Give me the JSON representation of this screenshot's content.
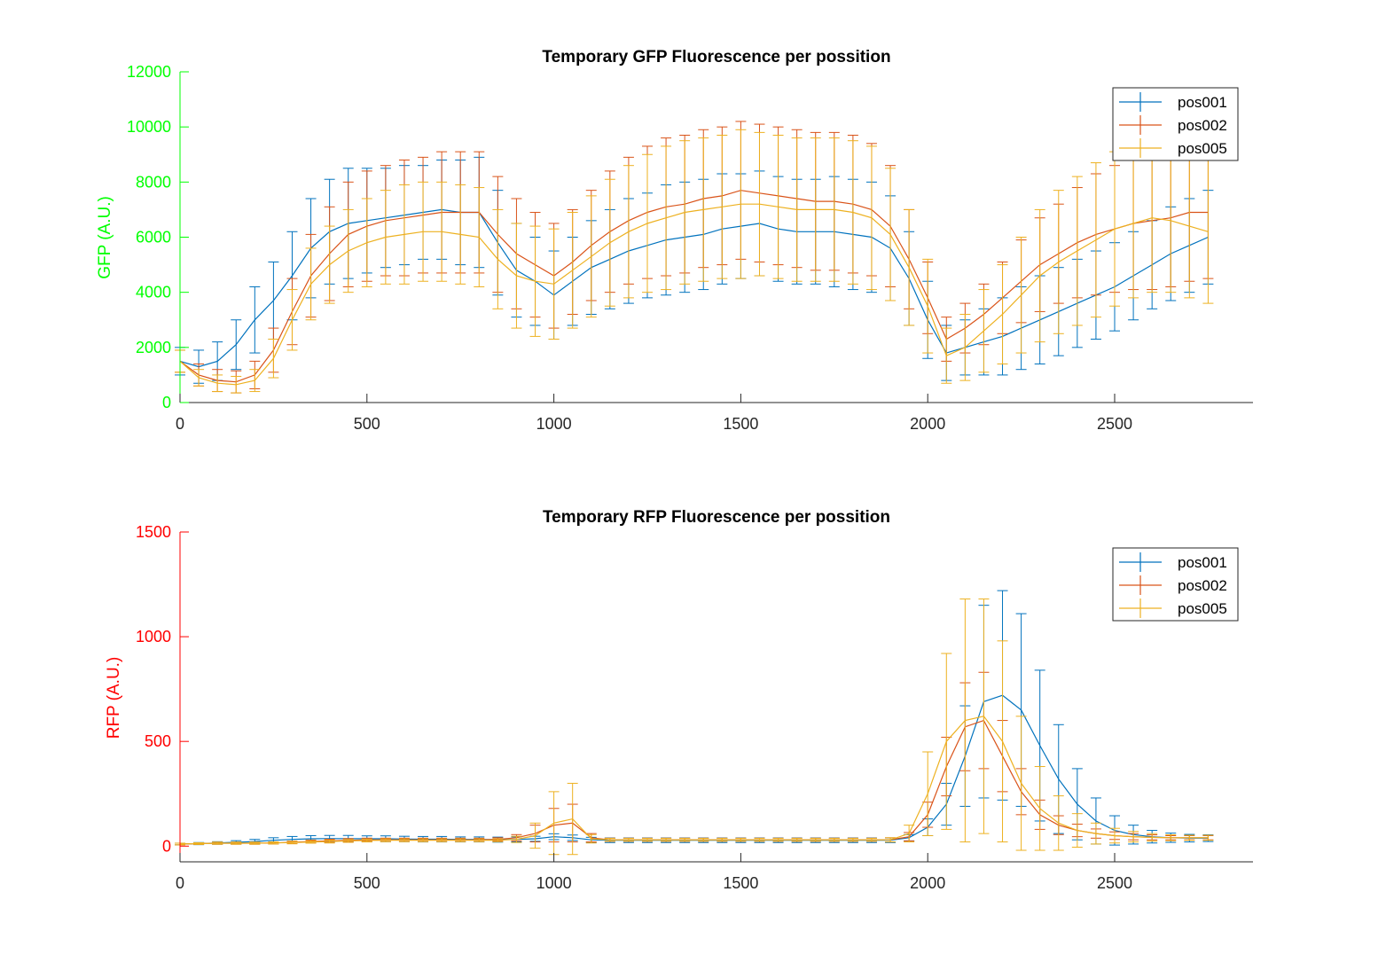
{
  "colors": {
    "pos001": "#0072BD",
    "pos002": "#D95319",
    "pos005": "#EDB120",
    "gfp_axis": "#00FF00",
    "rfp_axis": "#FF0000",
    "axis": "#262626"
  },
  "chart_data": [
    {
      "type": "line",
      "title": "Temporary GFP Fluorescence per possition",
      "xlabel": "",
      "ylabel": "GFP (A.U.)",
      "xlim": [
        0,
        2870
      ],
      "ylim": [
        0,
        12000
      ],
      "xticks": [
        0,
        500,
        1000,
        1500,
        2000,
        2500
      ],
      "yticks": [
        0,
        2000,
        4000,
        6000,
        8000,
        10000,
        12000
      ],
      "error_bars": true,
      "grid": false,
      "legend_position": "top-right",
      "series": [
        {
          "name": "pos001",
          "x": [
            0,
            50,
            100,
            150,
            200,
            250,
            300,
            350,
            400,
            450,
            500,
            550,
            600,
            650,
            700,
            750,
            800,
            850,
            900,
            950,
            1000,
            1050,
            1100,
            1150,
            1200,
            1250,
            1300,
            1350,
            1400,
            1450,
            1500,
            1550,
            1600,
            1650,
            1700,
            1750,
            1800,
            1850,
            1900,
            1950,
            2000,
            2050,
            2100,
            2150,
            2200,
            2250,
            2300,
            2350,
            2400,
            2450,
            2500,
            2550,
            2600,
            2650,
            2700,
            2750
          ],
          "y": [
            1500,
            1300,
            1500,
            2100,
            3000,
            3700,
            4600,
            5600,
            6200,
            6500,
            6600,
            6700,
            6800,
            6900,
            7000,
            6900,
            6900,
            5800,
            4800,
            4400,
            3900,
            4400,
            4900,
            5200,
            5500,
            5700,
            5900,
            6000,
            6100,
            6300,
            6400,
            6500,
            6300,
            6200,
            6200,
            6200,
            6100,
            6000,
            5600,
            4500,
            3000,
            1800,
            2000,
            2200,
            2400,
            2700,
            3000,
            3300,
            3600,
            3900,
            4200,
            4600,
            5000,
            5400,
            5700,
            6000
          ],
          "err": [
            500,
            600,
            700,
            900,
            1200,
            1400,
            1600,
            1800,
            1900,
            2000,
            1900,
            1800,
            1800,
            1700,
            1800,
            1900,
            2000,
            1900,
            1700,
            1600,
            1600,
            1600,
            1700,
            1800,
            1900,
            1900,
            2000,
            2000,
            2000,
            2000,
            1900,
            1900,
            1900,
            1900,
            1900,
            2000,
            2000,
            2000,
            1900,
            1700,
            1400,
            1000,
            1000,
            1200,
            1400,
            1500,
            1600,
            1600,
            1600,
            1600,
            1600,
            1600,
            1600,
            1700,
            1700,
            1700
          ]
        },
        {
          "name": "pos002",
          "x": [
            0,
            50,
            100,
            150,
            200,
            250,
            300,
            350,
            400,
            450,
            500,
            550,
            600,
            650,
            700,
            750,
            800,
            850,
            900,
            950,
            1000,
            1050,
            1100,
            1150,
            1200,
            1250,
            1300,
            1350,
            1400,
            1450,
            1500,
            1550,
            1600,
            1650,
            1700,
            1750,
            1800,
            1850,
            1900,
            1950,
            2000,
            2050,
            2100,
            2150,
            2200,
            2250,
            2300,
            2350,
            2400,
            2450,
            2500,
            2550,
            2600,
            2650,
            2700,
            2750
          ],
          "y": [
            1500,
            1000,
            800,
            750,
            1000,
            1900,
            3300,
            4600,
            5400,
            6100,
            6400,
            6600,
            6700,
            6800,
            6900,
            6900,
            6900,
            6100,
            5400,
            5000,
            4600,
            5100,
            5700,
            6200,
            6600,
            6900,
            7100,
            7200,
            7400,
            7500,
            7700,
            7600,
            7500,
            7400,
            7300,
            7300,
            7200,
            7000,
            6400,
            5200,
            3800,
            2300,
            2700,
            3200,
            3800,
            4400,
            5000,
            5400,
            5800,
            6100,
            6300,
            6500,
            6600,
            6700,
            6900,
            6900
          ],
          "err": [
            400,
            400,
            400,
            400,
            500,
            800,
            1200,
            1500,
            1700,
            1900,
            2000,
            2000,
            2100,
            2100,
            2200,
            2200,
            2200,
            2100,
            2000,
            1900,
            1900,
            1900,
            2000,
            2200,
            2300,
            2400,
            2500,
            2500,
            2500,
            2500,
            2500,
            2500,
            2500,
            2500,
            2500,
            2500,
            2500,
            2400,
            2200,
            1800,
            1300,
            800,
            900,
            1100,
            1300,
            1500,
            1700,
            1800,
            2000,
            2200,
            2300,
            2400,
            2500,
            2500,
            2500,
            2400
          ]
        },
        {
          "name": "pos005",
          "x": [
            0,
            50,
            100,
            150,
            200,
            250,
            300,
            350,
            400,
            450,
            500,
            550,
            600,
            650,
            700,
            750,
            800,
            850,
            900,
            950,
            1000,
            1050,
            1100,
            1150,
            1200,
            1250,
            1300,
            1350,
            1400,
            1450,
            1500,
            1550,
            1600,
            1650,
            1700,
            1750,
            1800,
            1850,
            1900,
            1950,
            2000,
            2050,
            2100,
            2150,
            2200,
            2250,
            2300,
            2350,
            2400,
            2450,
            2500,
            2550,
            2600,
            2650,
            2700,
            2750
          ],
          "y": [
            1500,
            900,
            700,
            650,
            800,
            1600,
            3000,
            4300,
            5000,
            5500,
            5800,
            6000,
            6100,
            6200,
            6200,
            6100,
            6000,
            5200,
            4600,
            4400,
            4300,
            4800,
            5300,
            5800,
            6200,
            6500,
            6700,
            6900,
            7000,
            7100,
            7200,
            7200,
            7100,
            7000,
            7000,
            7000,
            6900,
            6700,
            6100,
            4900,
            3500,
            1700,
            2000,
            2600,
            3200,
            3900,
            4600,
            5100,
            5500,
            5900,
            6300,
            6500,
            6700,
            6600,
            6400,
            6200
          ],
          "err": [
            400,
            300,
            300,
            300,
            400,
            700,
            1100,
            1300,
            1400,
            1500,
            1600,
            1700,
            1800,
            1800,
            1800,
            1800,
            1800,
            1800,
            1900,
            2000,
            2000,
            2100,
            2200,
            2300,
            2400,
            2500,
            2600,
            2600,
            2600,
            2600,
            2700,
            2600,
            2600,
            2600,
            2600,
            2600,
            2600,
            2600,
            2400,
            2100,
            1700,
            1000,
            1200,
            1500,
            1800,
            2100,
            2400,
            2600,
            2700,
            2800,
            2800,
            2700,
            2700,
            2600,
            2600,
            2600
          ]
        }
      ]
    },
    {
      "type": "line",
      "title": "Temporary RFP Fluorescence per possition",
      "xlabel": "",
      "ylabel": "RFP (A.U.)",
      "xlim": [
        0,
        2870
      ],
      "ylim": [
        -75,
        1500
      ],
      "xticks": [
        0,
        500,
        1000,
        1500,
        2000,
        2500
      ],
      "yticks": [
        0,
        500,
        1000,
        1500
      ],
      "error_bars": true,
      "grid": false,
      "legend_position": "top-right",
      "series": [
        {
          "name": "pos001",
          "x": [
            0,
            50,
            100,
            150,
            200,
            250,
            300,
            350,
            400,
            450,
            500,
            550,
            600,
            650,
            700,
            750,
            800,
            850,
            900,
            950,
            1000,
            1050,
            1100,
            1150,
            1200,
            1250,
            1300,
            1350,
            1400,
            1450,
            1500,
            1550,
            1600,
            1650,
            1700,
            1750,
            1800,
            1850,
            1900,
            1950,
            2000,
            2050,
            2100,
            2150,
            2200,
            2250,
            2300,
            2350,
            2400,
            2450,
            2500,
            2550,
            2600,
            2650,
            2700,
            2750
          ],
          "y": [
            10,
            12,
            15,
            18,
            22,
            28,
            32,
            35,
            36,
            36,
            35,
            35,
            34,
            33,
            33,
            32,
            32,
            31,
            32,
            35,
            45,
            40,
            30,
            28,
            28,
            28,
            28,
            28,
            28,
            28,
            28,
            28,
            28,
            28,
            28,
            28,
            28,
            28,
            28,
            40,
            90,
            200,
            430,
            690,
            720,
            650,
            480,
            320,
            200,
            120,
            75,
            55,
            45,
            40,
            38,
            38
          ],
          "err": [
            4,
            5,
            6,
            8,
            10,
            12,
            14,
            15,
            15,
            15,
            14,
            14,
            13,
            13,
            13,
            12,
            12,
            12,
            12,
            12,
            14,
            13,
            12,
            11,
            11,
            11,
            11,
            11,
            11,
            11,
            11,
            11,
            11,
            11,
            11,
            11,
            11,
            11,
            11,
            15,
            40,
            100,
            240,
            460,
            500,
            460,
            360,
            260,
            170,
            110,
            70,
            45,
            30,
            22,
            18,
            16
          ]
        },
        {
          "name": "pos002",
          "x": [
            0,
            50,
            100,
            150,
            200,
            250,
            300,
            350,
            400,
            450,
            500,
            550,
            600,
            650,
            700,
            750,
            800,
            850,
            900,
            950,
            1000,
            1050,
            1100,
            1150,
            1200,
            1250,
            1300,
            1350,
            1400,
            1450,
            1500,
            1550,
            1600,
            1650,
            1700,
            1750,
            1800,
            1850,
            1900,
            1950,
            2000,
            2050,
            2100,
            2150,
            2200,
            2250,
            2300,
            2350,
            2400,
            2450,
            2500,
            2550,
            2600,
            2650,
            2700,
            2750
          ],
          "y": [
            10,
            12,
            14,
            14,
            14,
            15,
            18,
            22,
            25,
            28,
            30,
            30,
            30,
            30,
            30,
            30,
            30,
            32,
            40,
            60,
            100,
            110,
            40,
            30,
            30,
            30,
            30,
            30,
            30,
            30,
            30,
            30,
            30,
            30,
            30,
            30,
            30,
            30,
            30,
            45,
            150,
            380,
            570,
            600,
            430,
            260,
            150,
            100,
            75,
            60,
            50,
            45,
            42,
            40,
            40,
            40
          ],
          "err": [
            4,
            4,
            5,
            5,
            5,
            5,
            6,
            7,
            8,
            8,
            8,
            8,
            8,
            8,
            8,
            8,
            8,
            8,
            15,
            40,
            80,
            90,
            20,
            8,
            8,
            8,
            8,
            8,
            8,
            8,
            8,
            8,
            8,
            8,
            8,
            8,
            8,
            8,
            10,
            20,
            60,
            140,
            210,
            230,
            170,
            110,
            70,
            45,
            30,
            22,
            18,
            15,
            12,
            10,
            10,
            10
          ]
        },
        {
          "name": "pos005",
          "x": [
            0,
            50,
            100,
            150,
            200,
            250,
            300,
            350,
            400,
            450,
            500,
            550,
            600,
            650,
            700,
            750,
            800,
            850,
            900,
            950,
            1000,
            1050,
            1100,
            1150,
            1200,
            1250,
            1300,
            1350,
            1400,
            1450,
            1500,
            1550,
            1600,
            1650,
            1700,
            1750,
            1800,
            1850,
            1900,
            1950,
            2000,
            2050,
            2100,
            2150,
            2200,
            2250,
            2300,
            2350,
            2400,
            2450,
            2500,
            2550,
            2600,
            2650,
            2700,
            2750
          ],
          "y": [
            10,
            12,
            14,
            14,
            14,
            15,
            17,
            20,
            22,
            25,
            27,
            28,
            28,
            28,
            28,
            28,
            28,
            28,
            32,
            50,
            110,
            130,
            35,
            30,
            30,
            30,
            30,
            30,
            30,
            30,
            30,
            30,
            30,
            30,
            30,
            30,
            30,
            30,
            30,
            60,
            250,
            500,
            600,
            620,
            500,
            300,
            180,
            110,
            75,
            60,
            50,
            45,
            42,
            40,
            40,
            40
          ],
          "err": [
            4,
            4,
            5,
            5,
            5,
            5,
            6,
            6,
            7,
            7,
            7,
            7,
            7,
            7,
            7,
            7,
            7,
            7,
            15,
            60,
            150,
            170,
            20,
            7,
            7,
            7,
            7,
            7,
            7,
            7,
            7,
            7,
            7,
            7,
            7,
            7,
            7,
            7,
            10,
            40,
            200,
            420,
            580,
            560,
            480,
            320,
            200,
            130,
            80,
            50,
            35,
            25,
            18,
            14,
            12,
            12
          ]
        }
      ]
    }
  ]
}
